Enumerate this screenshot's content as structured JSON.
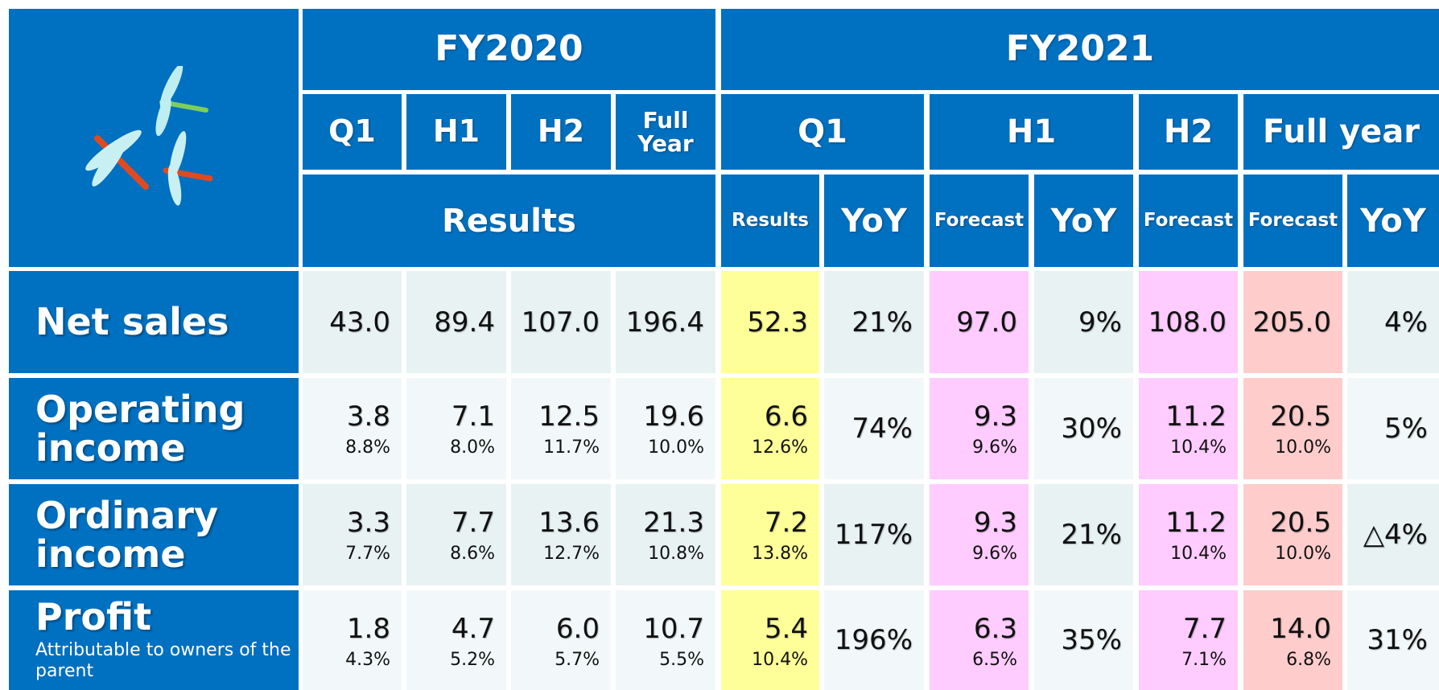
{
  "header": {
    "fy2020": "FY2020",
    "fy2021": "FY2021",
    "fy2020_periods": [
      "Q1",
      "H1",
      "H2",
      "Full Year"
    ],
    "fy2021_periods": [
      "Q1",
      "H1",
      "H2",
      "Full year"
    ],
    "fy2020_type": "Results",
    "fy2021_types": [
      "Results",
      "YoY",
      "Forecast",
      "YoY",
      "Forecast",
      "Forecast",
      "YoY"
    ]
  },
  "rows": [
    {
      "label": "Net sales",
      "cells": [
        {
          "value": "43.0"
        },
        {
          "value": "89.4"
        },
        {
          "value": "107.0"
        },
        {
          "value": "196.4"
        },
        {
          "value": "52.3"
        },
        {
          "value": "21%"
        },
        {
          "value": "97.0"
        },
        {
          "value": "9%"
        },
        {
          "value": "108.0"
        },
        {
          "value": "205.0"
        },
        {
          "value": "4%"
        }
      ]
    },
    {
      "label": "Operating income",
      "cells": [
        {
          "value": "3.8",
          "margin": "8.8%"
        },
        {
          "value": "7.1",
          "margin": "8.0%"
        },
        {
          "value": "12.5",
          "margin": "11.7%"
        },
        {
          "value": "19.6",
          "margin": "10.0%"
        },
        {
          "value": "6.6",
          "margin": "12.6%"
        },
        {
          "value": "74%"
        },
        {
          "value": "9.3",
          "margin": "9.6%"
        },
        {
          "value": "30%"
        },
        {
          "value": "11.2",
          "margin": "10.4%"
        },
        {
          "value": "20.5",
          "margin": "10.0%"
        },
        {
          "value": "5%"
        }
      ]
    },
    {
      "label": "Ordinary income",
      "cells": [
        {
          "value": "3.3",
          "margin": "7.7%"
        },
        {
          "value": "7.7",
          "margin": "8.6%"
        },
        {
          "value": "13.6",
          "margin": "12.7%"
        },
        {
          "value": "21.3",
          "margin": "10.8%"
        },
        {
          "value": "7.2",
          "margin": "13.8%"
        },
        {
          "value": "117%"
        },
        {
          "value": "9.3",
          "margin": "9.6%"
        },
        {
          "value": "21%"
        },
        {
          "value": "11.2",
          "margin": "10.4%"
        },
        {
          "value": "20.5",
          "margin": "10.0%"
        },
        {
          "value": "△4%"
        }
      ]
    },
    {
      "label": "Profit",
      "sublabel": "Attributable to owners of the parent",
      "cells": [
        {
          "value": "1.8",
          "margin": "4.3%"
        },
        {
          "value": "4.7",
          "margin": "5.2%"
        },
        {
          "value": "6.0",
          "margin": "5.7%"
        },
        {
          "value": "10.7",
          "margin": "5.5%"
        },
        {
          "value": "5.4",
          "margin": "10.4%"
        },
        {
          "value": "196%"
        },
        {
          "value": "6.3",
          "margin": "6.5%"
        },
        {
          "value": "35%"
        },
        {
          "value": "7.7",
          "margin": "7.1%"
        },
        {
          "value": "14.0",
          "margin": "6.8%"
        },
        {
          "value": "31%"
        }
      ]
    }
  ]
}
